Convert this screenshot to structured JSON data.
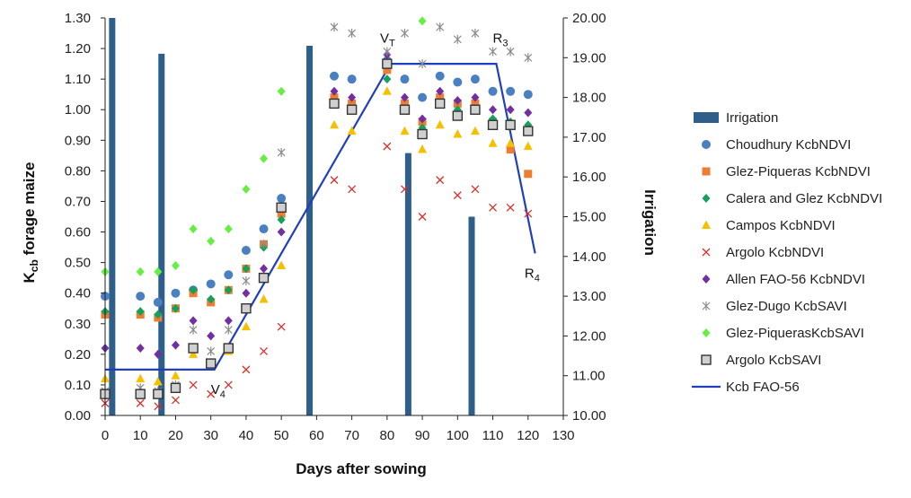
{
  "chart_data": {
    "type": "scatter",
    "title": "",
    "xlabel": "Days after sowing",
    "ylabel": "Kcb forage maize",
    "ylabel_main": "K",
    "ylabel_sub": "cb",
    "ylabel_rest": " forage maize",
    "y2label": "Irrigation",
    "xlim": [
      0,
      130
    ],
    "ylim": [
      0,
      1.3
    ],
    "y2lim": [
      10.0,
      20.0
    ],
    "x_ticks": [
      "0",
      "10",
      "20",
      "30",
      "40",
      "50",
      "60",
      "70",
      "80",
      "90",
      "100",
      "110",
      "120",
      "130"
    ],
    "y_ticks": [
      "0.00",
      "0.10",
      "0.20",
      "0.30",
      "0.40",
      "0.50",
      "0.60",
      "0.70",
      "0.80",
      "0.90",
      "1.00",
      "1.10",
      "1.20",
      "1.30"
    ],
    "y2_ticks": [
      "10.00",
      "11.00",
      "12.00",
      "13.00",
      "14.00",
      "15.00",
      "16.00",
      "17.00",
      "18.00",
      "19.00",
      "20.00"
    ],
    "irrigation": {
      "name": "Irrigation",
      "color": "#2e5f8a",
      "x": [
        2,
        16,
        58,
        86,
        104
      ],
      "values": [
        20.0,
        19.1,
        19.3,
        16.6,
        15.0
      ]
    },
    "series": [
      {
        "name": "Choudhury KcbNDVI",
        "marker": "circle",
        "color": "#4a7fc1",
        "x": [
          0,
          10,
          15,
          20,
          25,
          30,
          35,
          40,
          45,
          50,
          65,
          70,
          80,
          85,
          90,
          95,
          100,
          105,
          110,
          115,
          120
        ],
        "values": [
          0.39,
          0.39,
          0.37,
          0.4,
          0.41,
          0.43,
          0.46,
          0.54,
          0.61,
          0.71,
          1.11,
          1.1,
          1.16,
          1.1,
          1.04,
          1.11,
          1.09,
          1.1,
          1.06,
          1.06,
          1.05
        ]
      },
      {
        "name": "Glez-Piqueras KcbNDVI",
        "marker": "square",
        "color": "#ed7d31",
        "x": [
          0,
          10,
          15,
          20,
          25,
          30,
          35,
          40,
          45,
          50,
          65,
          70,
          80,
          85,
          90,
          95,
          100,
          105,
          110,
          115,
          120
        ],
        "values": [
          0.33,
          0.33,
          0.32,
          0.35,
          0.4,
          0.37,
          0.41,
          0.48,
          0.56,
          0.66,
          1.04,
          1.02,
          1.13,
          1.02,
          0.96,
          1.04,
          1.02,
          1.02,
          0.96,
          0.87,
          0.79
        ]
      },
      {
        "name": "Calera and Glez KcbNDVI",
        "marker": "diamond",
        "color": "#16a05a",
        "x": [
          0,
          10,
          15,
          20,
          25,
          30,
          35,
          40,
          45,
          50,
          65,
          70,
          80,
          85,
          90,
          95,
          100,
          105,
          110,
          115,
          120
        ],
        "values": [
          0.34,
          0.34,
          0.33,
          0.35,
          0.41,
          0.38,
          0.41,
          0.48,
          0.55,
          0.64,
          1.02,
          1.0,
          1.1,
          1.0,
          0.94,
          1.02,
          1.0,
          1.0,
          0.97,
          0.96,
          0.95
        ]
      },
      {
        "name": "Campos KcbNDVI",
        "marker": "triangle",
        "color": "#f5c000",
        "x": [
          0,
          10,
          15,
          20,
          25,
          30,
          35,
          40,
          45,
          50,
          65,
          70,
          80,
          85,
          90,
          95,
          100,
          105,
          110,
          115,
          120
        ],
        "values": [
          0.12,
          0.12,
          0.11,
          0.13,
          0.2,
          0.17,
          0.21,
          0.29,
          0.38,
          0.49,
          0.95,
          0.93,
          1.06,
          0.93,
          0.87,
          0.95,
          0.92,
          0.93,
          0.89,
          0.89,
          0.88
        ]
      },
      {
        "name": "Argolo KcbNDVI",
        "marker": "x",
        "color": "#d9302c",
        "x": [
          0,
          10,
          15,
          20,
          25,
          30,
          35,
          40,
          45,
          50,
          65,
          70,
          80,
          85,
          90,
          95,
          100,
          105,
          110,
          115,
          120
        ],
        "values": [
          0.04,
          0.04,
          0.03,
          0.05,
          0.1,
          0.07,
          0.1,
          0.15,
          0.21,
          0.29,
          0.77,
          0.74,
          0.88,
          0.74,
          0.65,
          0.77,
          0.72,
          0.74,
          0.68,
          0.68,
          0.66
        ]
      },
      {
        "name": "Allen FAO-56 KcbNDVI",
        "marker": "diamond",
        "color": "#7030a0",
        "x": [
          0,
          10,
          15,
          20,
          25,
          30,
          35,
          40,
          45,
          50,
          65,
          70,
          80,
          85,
          90,
          95,
          100,
          105,
          110,
          115,
          120
        ],
        "values": [
          0.22,
          0.22,
          0.2,
          0.23,
          0.31,
          0.26,
          0.31,
          0.4,
          0.48,
          0.6,
          1.06,
          1.04,
          1.18,
          1.04,
          0.97,
          1.06,
          1.03,
          1.04,
          1.0,
          1.0,
          0.99
        ]
      },
      {
        "name": "Glez-Dugo KcbSAVI",
        "marker": "asterisk",
        "color": "#8c8c8c",
        "x": [
          0,
          10,
          15,
          20,
          25,
          30,
          35,
          40,
          45,
          50,
          65,
          70,
          80,
          85,
          90,
          95,
          100,
          105,
          110,
          115,
          120
        ],
        "values": [
          0.08,
          0.09,
          0.08,
          0.1,
          0.28,
          0.21,
          0.28,
          0.44,
          0.56,
          0.86,
          1.27,
          1.25,
          1.19,
          1.25,
          1.15,
          1.27,
          1.23,
          1.25,
          1.19,
          1.19,
          1.17
        ]
      },
      {
        "name": "Glez-PiquerasKcbSAVI",
        "marker": "diamond",
        "color": "#66ee44",
        "x": [
          0,
          10,
          15,
          20,
          25,
          30,
          35,
          40,
          45,
          50,
          90
        ],
        "values": [
          0.47,
          0.47,
          0.47,
          0.49,
          0.61,
          0.57,
          0.61,
          0.74,
          0.84,
          1.06,
          1.29
        ]
      },
      {
        "name": "Argolo KcbSAVI",
        "marker": "box",
        "color": "#d0d0d0",
        "x": [
          0,
          10,
          15,
          20,
          25,
          30,
          35,
          40,
          45,
          50,
          65,
          70,
          80,
          85,
          90,
          95,
          100,
          105,
          110,
          115,
          120
        ],
        "values": [
          0.07,
          0.07,
          0.07,
          0.09,
          0.22,
          0.17,
          0.22,
          0.35,
          0.45,
          0.68,
          1.02,
          1.0,
          1.15,
          1.0,
          0.92,
          1.02,
          0.98,
          1.0,
          0.95,
          0.95,
          0.93
        ]
      }
    ],
    "kcb_line": {
      "name": "Kcb FAO-56",
      "color": "#1f3fbf",
      "x": [
        0,
        31,
        81,
        111,
        122
      ],
      "values": [
        0.15,
        0.15,
        1.15,
        1.15,
        0.53
      ]
    },
    "annotations": [
      {
        "text": "V4",
        "main": "V",
        "sub": "4",
        "x": 30,
        "y": 0.07
      },
      {
        "text": "VT",
        "main": "V",
        "sub": "T",
        "x": 78,
        "y": 1.22
      },
      {
        "text": "R3",
        "main": "R",
        "sub": "3",
        "x": 110,
        "y": 1.22
      },
      {
        "text": "R4",
        "main": "R",
        "sub": "4",
        "x": 119,
        "y": 0.45
      }
    ]
  }
}
